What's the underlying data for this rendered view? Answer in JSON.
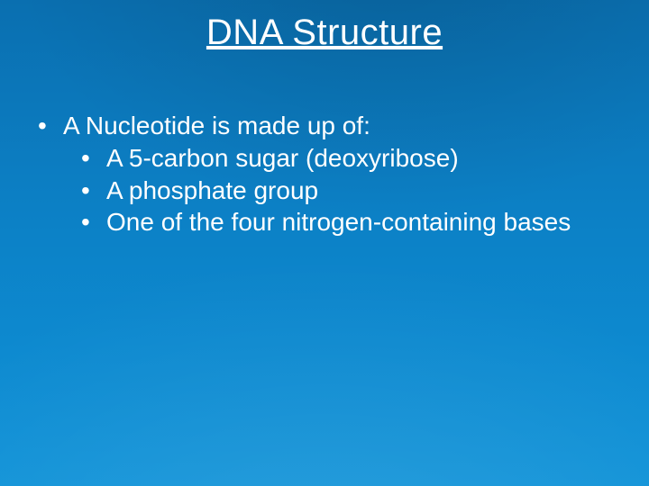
{
  "slide": {
    "title": "DNA Structure",
    "background_gradient": [
      "#0a6fb0",
      "#0c7fc4",
      "#0d89cf",
      "#1193d8"
    ],
    "text_color": "#ffffff",
    "title_fontsize": 40,
    "body_fontsize": 28,
    "bullets": {
      "lvl1": {
        "marker": "•",
        "text": "A Nucleotide is made up of:"
      },
      "lvl2": [
        {
          "marker": "•",
          "text": "A 5-carbon sugar (deoxyribose)"
        },
        {
          "marker": "•",
          "text": "A phosphate group"
        },
        {
          "marker": "•",
          "text": "One of the four nitrogen-containing bases"
        }
      ]
    }
  }
}
